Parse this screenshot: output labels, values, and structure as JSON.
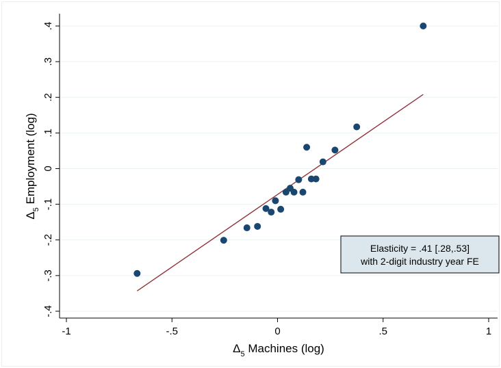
{
  "chart_data": {
    "type": "scatter",
    "xlabel": "Machines (log)",
    "ylabel": "Employment (log)",
    "axis_prefix": "Δ",
    "axis_prefix_sub": "5",
    "xlim": [
      -1,
      1
    ],
    "ylim": [
      -0.4,
      0.4
    ],
    "xticks": [
      -1,
      -0.5,
      0,
      0.5,
      1
    ],
    "xtick_labels": [
      "-1",
      "-.5",
      "0",
      ".5",
      "1"
    ],
    "yticks": [
      -0.4,
      -0.3,
      -0.2,
      -0.1,
      0,
      0.1,
      0.2,
      0.3,
      0.4
    ],
    "ytick_labels": [
      "-.4",
      "-.3",
      "-.2",
      "-.1",
      "0",
      ".1",
      ".2",
      ".3",
      ".4"
    ],
    "grid": "horizontal",
    "points": [
      {
        "x": -0.665,
        "y": -0.294
      },
      {
        "x": -0.255,
        "y": -0.201
      },
      {
        "x": -0.145,
        "y": -0.166
      },
      {
        "x": -0.095,
        "y": -0.162
      },
      {
        "x": -0.055,
        "y": -0.112
      },
      {
        "x": -0.03,
        "y": -0.122
      },
      {
        "x": -0.01,
        "y": -0.09
      },
      {
        "x": 0.015,
        "y": -0.114
      },
      {
        "x": 0.04,
        "y": -0.066
      },
      {
        "x": 0.06,
        "y": -0.055
      },
      {
        "x": 0.078,
        "y": -0.066
      },
      {
        "x": 0.1,
        "y": -0.031
      },
      {
        "x": 0.12,
        "y": -0.066
      },
      {
        "x": 0.138,
        "y": 0.06
      },
      {
        "x": 0.16,
        "y": -0.029
      },
      {
        "x": 0.182,
        "y": -0.029
      },
      {
        "x": 0.215,
        "y": 0.019
      },
      {
        "x": 0.272,
        "y": 0.052
      },
      {
        "x": 0.375,
        "y": 0.117
      },
      {
        "x": 0.69,
        "y": 0.4
      }
    ],
    "fit_line": {
      "x": [
        -0.665,
        0.69
      ],
      "y": [
        -0.343,
        0.208
      ]
    },
    "annotation": {
      "line1": "Elasticity = .41 [.28,.53]",
      "line2": "with 2-digit industry year FE"
    },
    "colors": {
      "points": "#1a476f",
      "fit_line": "#90353b",
      "grid": "#eaf2f3",
      "annotation_bg": "#dbe7ec",
      "frame": "#000000"
    }
  }
}
